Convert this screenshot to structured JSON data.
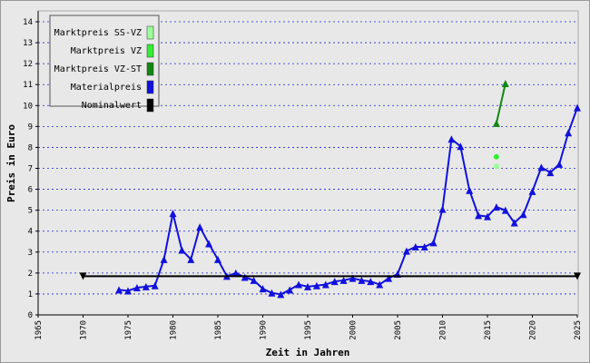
{
  "chart_data": {
    "type": "line",
    "xlabel": "Zeit in Jahren",
    "ylabel": "Preis in Euro",
    "xlim": [
      1965,
      2025
    ],
    "xticks": [
      1965,
      1970,
      1975,
      1980,
      1985,
      1990,
      1995,
      2000,
      2005,
      2010,
      2015,
      2020,
      2025
    ],
    "ylim": [
      0,
      14
    ],
    "yticks": [
      0,
      1,
      2,
      3,
      4,
      5,
      6,
      7,
      8,
      9,
      10,
      11,
      12,
      13,
      14
    ],
    "grid": true,
    "legend": "top-left",
    "series": [
      {
        "name": "Marktpreis SS-VZ",
        "color": "#99ff99",
        "marker": "circle",
        "x": [
          2016
        ],
        "values": [
          7.1
        ]
      },
      {
        "name": "Marktpreis VZ",
        "color": "#33ee33",
        "marker": "circle",
        "x": [
          2016
        ],
        "values": [
          7.55
        ]
      },
      {
        "name": "Marktpreis VZ-ST",
        "color": "#118811",
        "marker": "triangle",
        "x": [
          2016,
          2017
        ],
        "values": [
          9.15,
          11.05
        ]
      },
      {
        "name": "Materialpreis",
        "color": "#1111dd",
        "marker": "triangle",
        "x": [
          1974,
          1975,
          1976,
          1977,
          1978,
          1979,
          1980,
          1981,
          1982,
          1983,
          1984,
          1985,
          1986,
          1987,
          1988,
          1989,
          1990,
          1991,
          1992,
          1993,
          1994,
          1995,
          1996,
          1997,
          1998,
          1999,
          2000,
          2001,
          2002,
          2003,
          2004,
          2005,
          2006,
          2007,
          2008,
          2009,
          2010,
          2011,
          2012,
          2013,
          2014,
          2015,
          2016,
          2017,
          2018,
          2019,
          2020,
          2021,
          2022,
          2023,
          2024,
          2025
        ],
        "values": [
          1.2,
          1.15,
          1.3,
          1.35,
          1.4,
          2.65,
          4.85,
          3.1,
          2.65,
          4.2,
          3.4,
          2.65,
          1.85,
          2.0,
          1.8,
          1.65,
          1.25,
          1.05,
          0.98,
          1.2,
          1.45,
          1.35,
          1.4,
          1.45,
          1.6,
          1.65,
          1.75,
          1.65,
          1.6,
          1.45,
          1.75,
          1.95,
          3.05,
          3.25,
          3.25,
          3.45,
          5.05,
          8.4,
          8.05,
          5.95,
          4.75,
          4.7,
          5.15,
          5.0,
          4.4,
          4.8,
          5.9,
          7.05,
          6.8,
          7.2,
          8.7,
          9.9
        ]
      },
      {
        "name": "Nominalwert",
        "color": "#000000",
        "marker": "triangle-down",
        "x": [
          1970,
          2025
        ],
        "values": [
          1.85,
          1.85
        ]
      }
    ]
  }
}
